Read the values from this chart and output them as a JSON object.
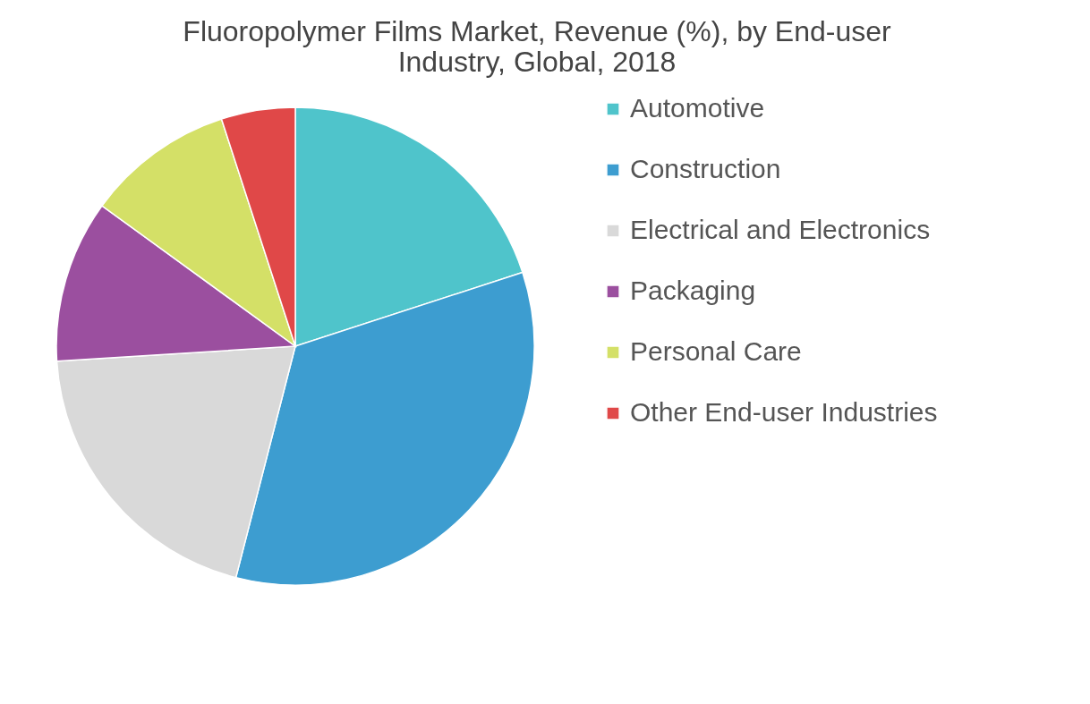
{
  "chart_data": {
    "type": "pie",
    "title": "Fluoropolymer Films Market, Revenue (%), by End-user Industry, Global, 2018",
    "categories": [
      "Automotive",
      "Construction",
      "Electrical and Electronics",
      "Packaging",
      "Personal Care",
      "Other End-user Industries"
    ],
    "values": [
      20,
      34,
      20,
      11,
      10,
      5
    ],
    "colors": [
      "#4fc4cb",
      "#3d9dd0",
      "#d9d9d9",
      "#9b4f9f",
      "#d4e067",
      "#e04848"
    ],
    "legend": "right"
  }
}
